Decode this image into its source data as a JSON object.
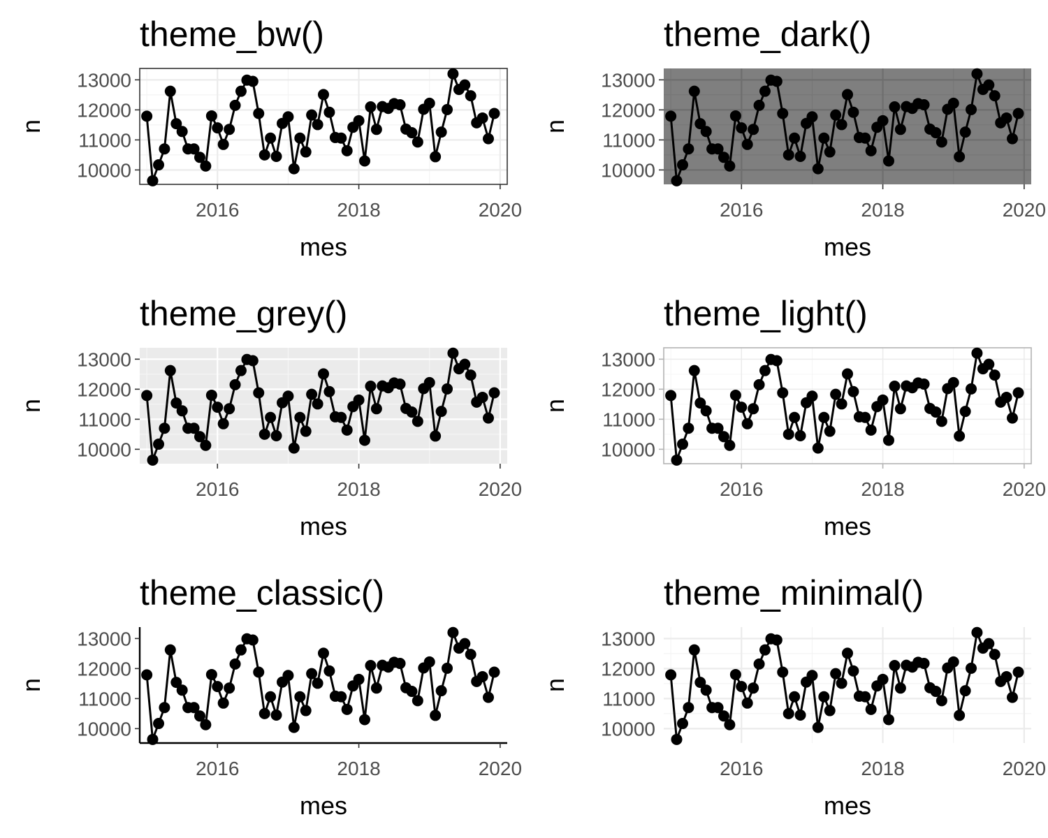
{
  "chart_data": [
    {
      "type": "line",
      "title": "theme_bw()",
      "theme": "bw",
      "xlabel": "mes",
      "ylabel": "n",
      "x_tick_labels": [
        "2016",
        "2018",
        "2020"
      ],
      "y_tick_labels": [
        "10000",
        "11000",
        "12000",
        "13000"
      ],
      "xlim": [
        2014.9,
        2020.1
      ],
      "ylim": [
        9520,
        13380
      ],
      "grid": true,
      "panel_border": true
    },
    {
      "type": "line",
      "title": "theme_dark()",
      "theme": "dark",
      "xlabel": "mes",
      "ylabel": "n",
      "x_tick_labels": [
        "2016",
        "2018",
        "2020"
      ],
      "y_tick_labels": [
        "10000",
        "11000",
        "12000",
        "13000"
      ],
      "xlim": [
        2014.9,
        2020.1
      ],
      "ylim": [
        9520,
        13380
      ],
      "grid": true,
      "panel_background": "#7f7f7f"
    },
    {
      "type": "line",
      "title": "theme_grey()",
      "theme": "grey",
      "xlabel": "mes",
      "ylabel": "n",
      "x_tick_labels": [
        "2016",
        "2018",
        "2020"
      ],
      "y_tick_labels": [
        "10000",
        "11000",
        "12000",
        "13000"
      ],
      "xlim": [
        2014.9,
        2020.1
      ],
      "ylim": [
        9520,
        13380
      ],
      "grid": true,
      "panel_background": "#ebebeb"
    },
    {
      "type": "line",
      "title": "theme_light()",
      "theme": "light",
      "xlabel": "mes",
      "ylabel": "n",
      "x_tick_labels": [
        "2016",
        "2018",
        "2020"
      ],
      "y_tick_labels": [
        "10000",
        "11000",
        "12000",
        "13000"
      ],
      "xlim": [
        2014.9,
        2020.1
      ],
      "ylim": [
        9520,
        13380
      ],
      "grid": true,
      "panel_border": true
    },
    {
      "type": "line",
      "title": "theme_classic()",
      "theme": "classic",
      "xlabel": "mes",
      "ylabel": "n",
      "x_tick_labels": [
        "2016",
        "2018",
        "2020"
      ],
      "y_tick_labels": [
        "10000",
        "11000",
        "12000",
        "13000"
      ],
      "xlim": [
        2014.9,
        2020.1
      ],
      "ylim": [
        9520,
        13380
      ],
      "grid": false,
      "axis_lines": true
    },
    {
      "type": "line",
      "title": "theme_minimal()",
      "theme": "minimal",
      "xlabel": "mes",
      "ylabel": "n",
      "x_tick_labels": [
        "2016",
        "2018",
        "2020"
      ],
      "y_tick_labels": [
        "10000",
        "11000",
        "12000",
        "13000"
      ],
      "xlim": [
        2014.9,
        2020.1
      ],
      "ylim": [
        9520,
        13380
      ],
      "grid": true
    }
  ],
  "series": {
    "x": [
      2015.0,
      2015.083,
      2015.167,
      2015.25,
      2015.333,
      2015.417,
      2015.5,
      2015.583,
      2015.667,
      2015.75,
      2015.833,
      2015.917,
      2016.0,
      2016.083,
      2016.167,
      2016.25,
      2016.333,
      2016.417,
      2016.5,
      2016.583,
      2016.667,
      2016.75,
      2016.833,
      2016.917,
      2017.0,
      2017.083,
      2017.167,
      2017.25,
      2017.333,
      2017.417,
      2017.5,
      2017.583,
      2017.667,
      2017.75,
      2017.833,
      2017.917,
      2018.0,
      2018.083,
      2018.167,
      2018.25,
      2018.333,
      2018.417,
      2018.5,
      2018.583,
      2018.667,
      2018.75,
      2018.833,
      2018.917,
      2019.0,
      2019.083,
      2019.167,
      2019.25,
      2019.333,
      2019.417,
      2019.5,
      2019.583,
      2019.667,
      2019.75,
      2019.833,
      2019.917
    ],
    "n": [
      11790,
      9640,
      10170,
      10700,
      12620,
      11540,
      11280,
      10700,
      10700,
      10420,
      10130,
      11800,
      11400,
      10850,
      11350,
      12150,
      12620,
      12990,
      12950,
      11880,
      10500,
      11060,
      10450,
      11550,
      11770,
      10040,
      11060,
      10600,
      11830,
      11510,
      12510,
      11920,
      11080,
      11060,
      10640,
      11420,
      11640,
      10300,
      12100,
      11350,
      12110,
      12050,
      12210,
      12170,
      11360,
      11240,
      10930,
      12020,
      12220,
      10440,
      11260,
      12010,
      13200,
      12680,
      12830,
      12470,
      11570,
      11730,
      11040,
      11880
    ]
  }
}
